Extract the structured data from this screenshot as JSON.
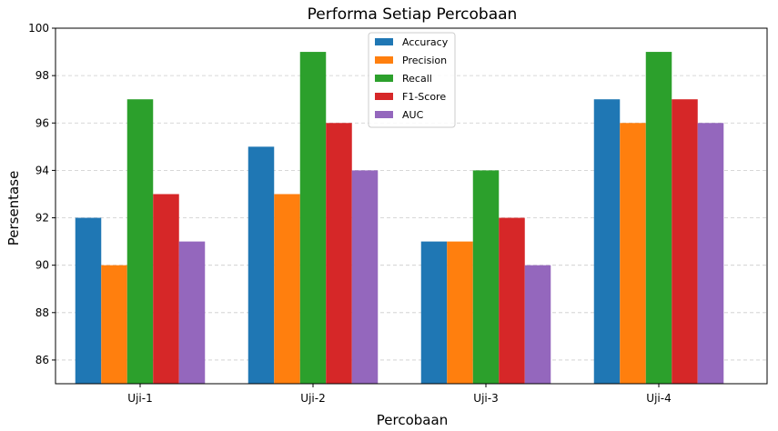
{
  "chart_data": {
    "type": "bar",
    "title": "Performa Setiap Percobaan",
    "xlabel": "Percobaan",
    "ylabel": "Persentase",
    "categories": [
      "Uji-1",
      "Uji-2",
      "Uji-3",
      "Uji-4"
    ],
    "ylim": [
      85,
      100
    ],
    "yticks": [
      86,
      88,
      90,
      92,
      94,
      96,
      98,
      100
    ],
    "grid": true,
    "legend_position": "top-center",
    "series": [
      {
        "name": "Accuracy",
        "color": "#1f77b4",
        "values": [
          92,
          95,
          91,
          97
        ]
      },
      {
        "name": "Precision",
        "color": "#ff7f0e",
        "values": [
          90,
          93,
          91,
          96
        ]
      },
      {
        "name": "Recall",
        "color": "#2ca02c",
        "values": [
          97,
          99,
          94,
          99
        ]
      },
      {
        "name": "F1-Score",
        "color": "#d62728",
        "values": [
          93,
          96,
          92,
          97
        ]
      },
      {
        "name": "AUC",
        "color": "#9467bd",
        "values": [
          91,
          94,
          90,
          96
        ]
      }
    ]
  }
}
